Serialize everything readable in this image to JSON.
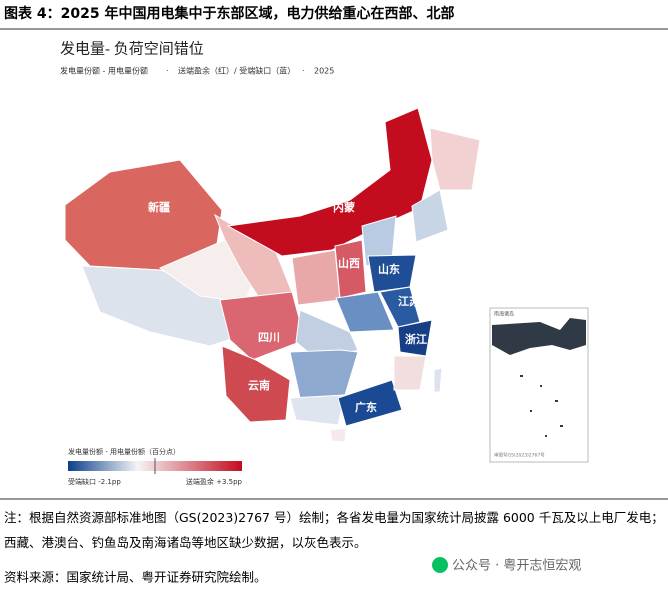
{
  "header": {
    "title": "图表 4：2025 年中国用电集中于东部区域，电力供给重心在西部、北部"
  },
  "map": {
    "title": "发电量-  负荷空间错位",
    "subtitle": [
      "发电量份额 - 用电量份额",
      "送端盈余（红）/ 受端缺口（蓝）",
      "2025"
    ],
    "provinces": [
      "新疆",
      "内蒙",
      "山西",
      "山东",
      "江苏",
      "浙江",
      "四川",
      "云南",
      "广东"
    ],
    "inset": {
      "title": "南海诸岛",
      "code": "审图号GS(2023)2767号"
    },
    "legend": {
      "title": "发电量份额 - 用电量份额（百分点）",
      "low": "受端缺口 -2.1pp",
      "high": "送端盈余 +3.5pp"
    }
  },
  "note": "注：根据自然资源部标准地图（GS(2023)2767 号）绘制；各省发电量为国家统计局披露 6000 千瓦及以上电厂发电；西藏、港澳台、钓鱼岛及南海诸岛等地区缺少数据，以灰色表示。",
  "source": "资料来源：国家统计局、粤开证券研究院绘制。",
  "watermark": "公众号 · 粤开志恒宏观"
}
